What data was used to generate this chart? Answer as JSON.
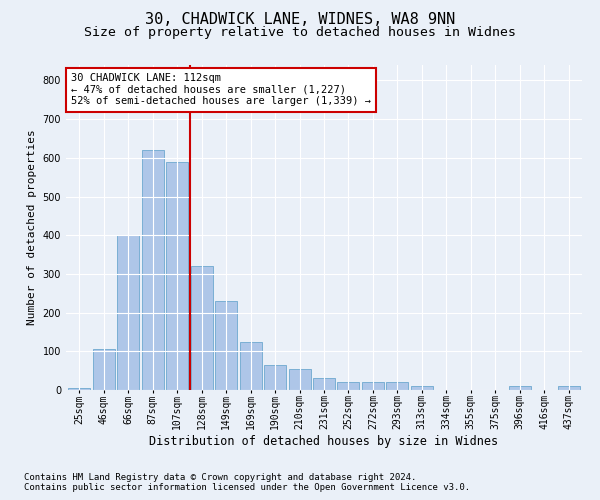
{
  "title1": "30, CHADWICK LANE, WIDNES, WA8 9NN",
  "title2": "Size of property relative to detached houses in Widnes",
  "xlabel": "Distribution of detached houses by size in Widnes",
  "ylabel": "Number of detached properties",
  "footnote1": "Contains HM Land Registry data © Crown copyright and database right 2024.",
  "footnote2": "Contains public sector information licensed under the Open Government Licence v3.0.",
  "annotation_line1": "30 CHADWICK LANE: 112sqm",
  "annotation_line2": "← 47% of detached houses are smaller (1,227)",
  "annotation_line3": "52% of semi-detached houses are larger (1,339) →",
  "bar_labels": [
    "25sqm",
    "46sqm",
    "66sqm",
    "87sqm",
    "107sqm",
    "128sqm",
    "149sqm",
    "169sqm",
    "190sqm",
    "210sqm",
    "231sqm",
    "252sqm",
    "272sqm",
    "293sqm",
    "313sqm",
    "334sqm",
    "355sqm",
    "375sqm",
    "396sqm",
    "416sqm",
    "437sqm"
  ],
  "bar_heights": [
    5,
    105,
    400,
    620,
    590,
    320,
    230,
    125,
    65,
    55,
    30,
    20,
    20,
    20,
    10,
    0,
    0,
    0,
    10,
    0,
    10
  ],
  "bar_color": "#aec6e8",
  "bar_edge_color": "#7aafd4",
  "vline_x_index": 4.52,
  "vline_color": "#cc0000",
  "ylim": [
    0,
    840
  ],
  "yticks": [
    0,
    100,
    200,
    300,
    400,
    500,
    600,
    700,
    800
  ],
  "bg_color": "#eaf0f8",
  "axes_bg_color": "#eaf0f8",
  "grid_color": "#ffffff",
  "title_fontsize": 11,
  "subtitle_fontsize": 9.5,
  "xlabel_fontsize": 8.5,
  "ylabel_fontsize": 8,
  "tick_fontsize": 7,
  "annotation_fontsize": 7.5,
  "footnote_fontsize": 6.5
}
